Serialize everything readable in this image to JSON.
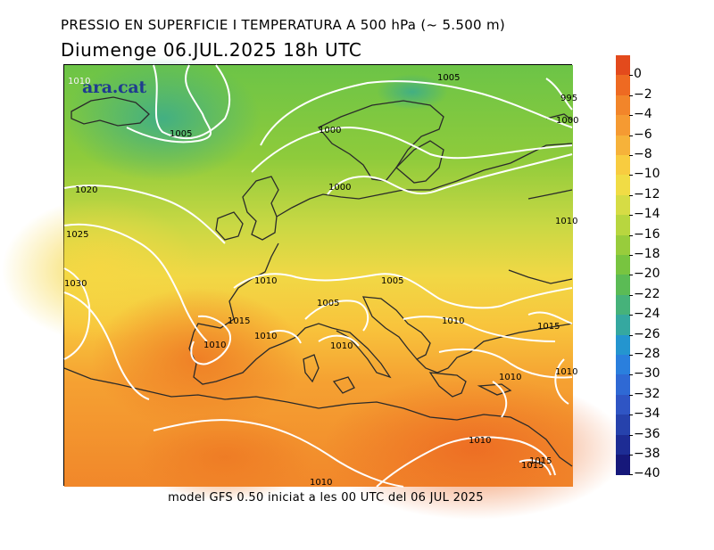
{
  "header": {
    "title": "PRESSIO EN SUPERFICIE I TEMPERATURA A 500 hPa (~ 5.500 m)",
    "subtitle": "Diumenge  06.JUL.2025  18h  UTC"
  },
  "footer": {
    "text": "model GFS 0.50 iniciat a les 00 UTC del 06 JUL 2025"
  },
  "logo": {
    "text": "ara.cat",
    "color": "#1f3c8f"
  },
  "colorbar": {
    "labels": [
      "0",
      "−2",
      "−4",
      "−6",
      "−8",
      "−10",
      "−12",
      "−14",
      "−16",
      "−18",
      "−20",
      "−22",
      "−24",
      "−26",
      "−28",
      "−30",
      "−32",
      "−34",
      "−36",
      "−38",
      "−40"
    ],
    "colors": [
      "#e34a1c",
      "#ee6a22",
      "#f2852a",
      "#f59a32",
      "#f6b23a",
      "#f8cc40",
      "#f1dc45",
      "#d6dc45",
      "#b8d63f",
      "#98cc3c",
      "#78c440",
      "#5bbb55",
      "#46b27a",
      "#35a8a0",
      "#2495cf",
      "#2a7fdd",
      "#2f69d4",
      "#2f55c4",
      "#2642ac",
      "#1d2c94",
      "#16187a"
    ]
  },
  "isobars": {
    "labels": [
      "1010",
      "1005",
      "1005",
      "1000",
      "1020",
      "1025",
      "1030",
      "1000",
      "1010",
      "1005",
      "1005",
      "1015",
      "1010",
      "1010",
      "1010",
      "1010",
      "1015",
      "1010",
      "1010",
      "1010",
      "1015",
      "1010",
      "1010",
      "995",
      "1000",
      "1015"
    ]
  }
}
